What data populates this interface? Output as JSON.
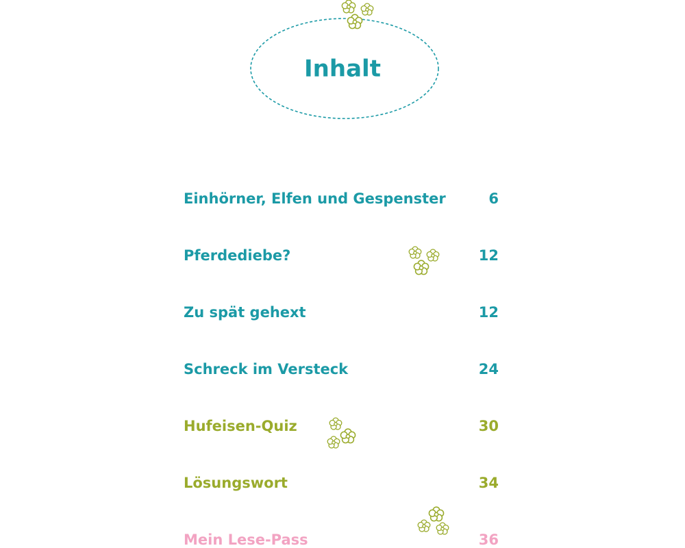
{
  "header": {
    "title": "Inhalt"
  },
  "entries": [
    {
      "label": "Einhörner, Elfen und Gespenster",
      "page": "6",
      "color": "#1b9aa6"
    },
    {
      "label": "Pferdediebe?",
      "page": "12",
      "color": "#1b9aa6"
    },
    {
      "label": "Zu spät gehext",
      "page": "12",
      "color": "#1b9aa6"
    },
    {
      "label": "Schreck im Versteck",
      "page": "24",
      "color": "#1b9aa6"
    },
    {
      "label": "Hufeisen-Quiz",
      "page": "30",
      "color": "#9aab2c"
    },
    {
      "label": "Lösungswort",
      "page": "34",
      "color": "#9aab2c"
    },
    {
      "label": "Mein Lese-Pass",
      "page": "36",
      "color": "#f2a3c2"
    }
  ]
}
